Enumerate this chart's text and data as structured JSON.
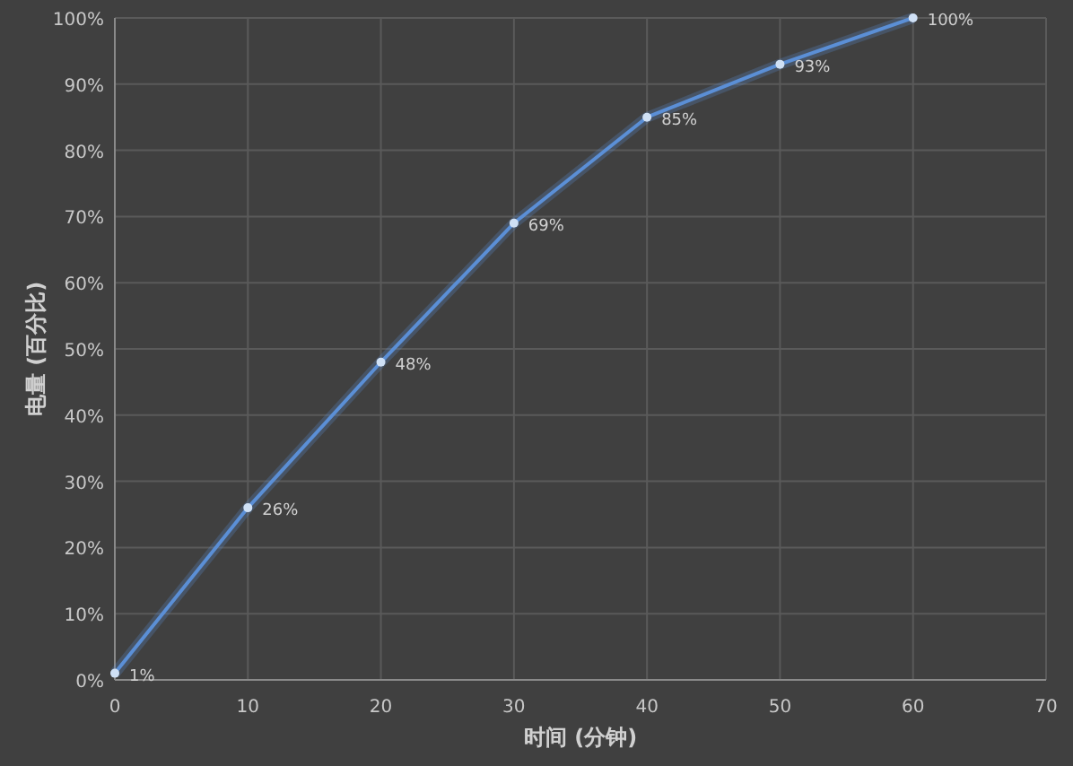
{
  "chart_data": {
    "type": "line",
    "xlabel": "时间 (分钟)",
    "ylabel": "电量 (百分比)",
    "x": [
      0,
      10,
      20,
      30,
      40,
      50,
      60
    ],
    "series": [
      {
        "color": "#5b8fd6",
        "values": [
          1,
          26,
          48,
          69,
          85,
          93,
          100
        ]
      }
    ],
    "xlim": [
      0,
      70
    ],
    "xticks": [
      0,
      10,
      20,
      30,
      40,
      50,
      60,
      70
    ],
    "ylim": [
      0,
      100
    ],
    "yticks": [
      {
        "value": 0,
        "label": "0%"
      },
      {
        "value": 10,
        "label": "10%"
      },
      {
        "value": 20,
        "label": "20%"
      },
      {
        "value": 30,
        "label": "30%"
      },
      {
        "value": 40,
        "label": "40%"
      },
      {
        "value": 50,
        "label": "50%"
      },
      {
        "value": 60,
        "label": "60%"
      },
      {
        "value": 70,
        "label": "70%"
      },
      {
        "value": 80,
        "label": "80%"
      },
      {
        "value": 90,
        "label": "90%"
      },
      {
        "value": 100,
        "label": "100%"
      }
    ],
    "value_labels": [
      "1%",
      "26%",
      "48%",
      "69%",
      "85%",
      "93%",
      "100%"
    ],
    "grid": true,
    "marker": "circle",
    "line_style": "solid"
  }
}
